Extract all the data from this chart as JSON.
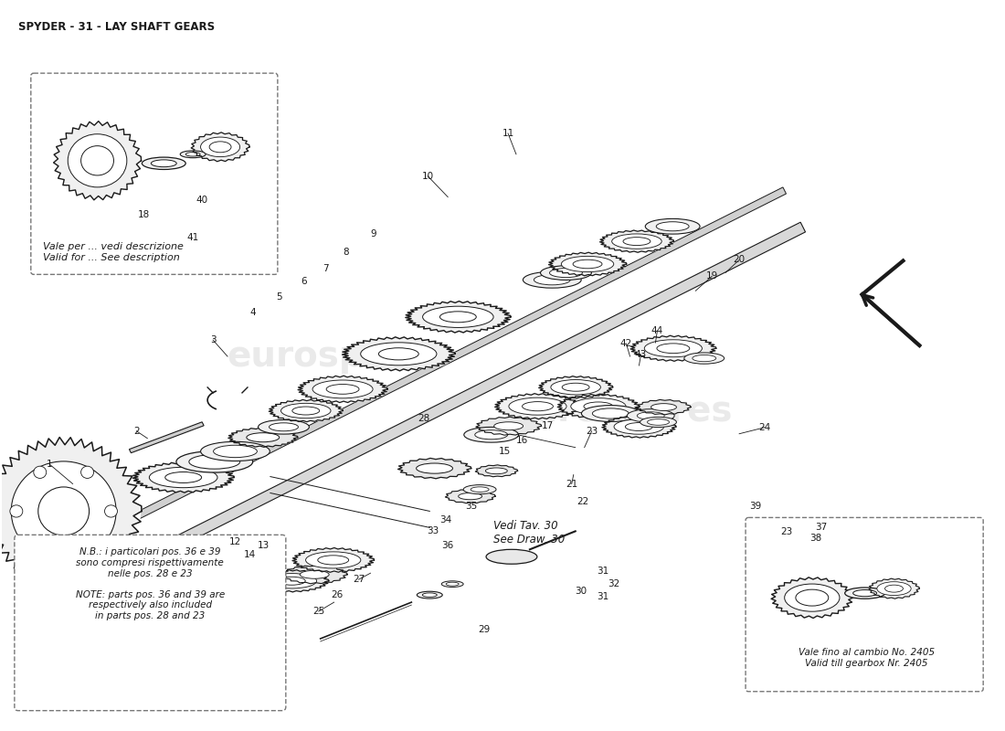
{
  "title": "SPYDER - 31 - LAY SHAFT GEARS",
  "bg_color": "#ffffff",
  "line_color": "#1a1a1a",
  "watermark_color": "#d0d0d0",
  "note_box1_text": "N.B.: i particolari pos. 36 e 39\nsono compresi rispettivamente\nnelle pos. 28 e 23\n\nNOTE: parts pos. 36 and 39 are\nrespectively also included\nin parts pos. 28 and 23",
  "note_box2_text": "Vale per ... vedi descrizione\nValid for ... See description",
  "note_box3_text": "Vale fino al cambio No. 2405\nValid till gearbox Nr. 2405",
  "see_draw_text": "Vedi Tav. 30\nSee Draw. 30",
  "title_fontsize": 8.5,
  "label_fontsize": 7.5
}
